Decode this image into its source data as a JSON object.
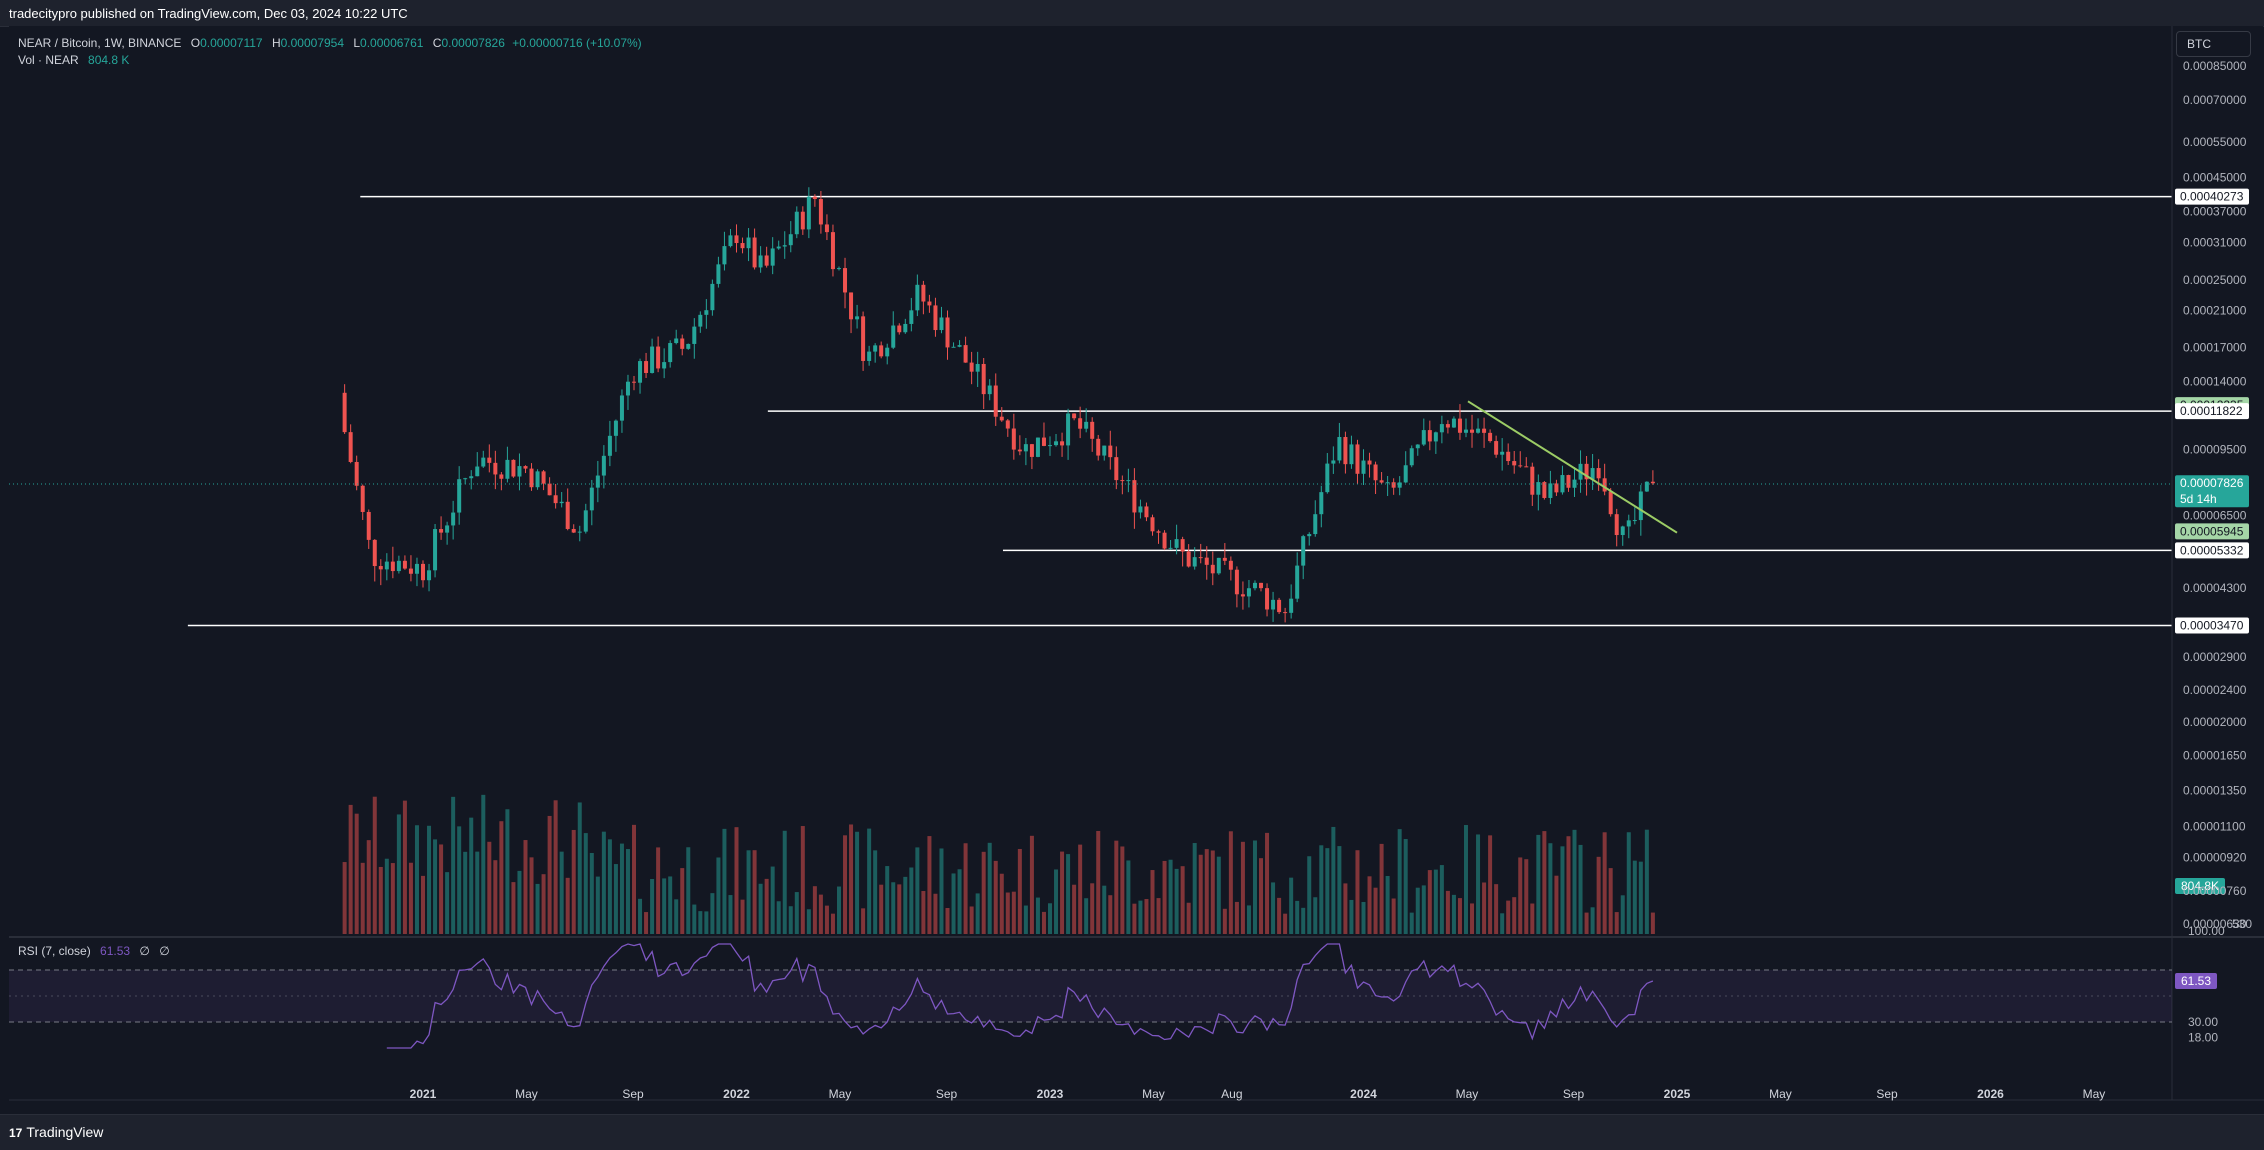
{
  "header": {
    "published": "tradecitypro published on TradingView.com, Dec 03, 2024 10:22 UTC"
  },
  "legend": {
    "symbol": "NEAR / Bitcoin, 1W, BINANCE",
    "o_label": "O",
    "o": "0.00007117",
    "h_label": "H",
    "h": "0.00007954",
    "l_label": "L",
    "l": "0.00006761",
    "c_label": "C",
    "c": "0.00007826",
    "change": "+0.00000716 (+10.07%)",
    "vol_label": "Vol · NEAR",
    "vol_value": "804.8 K"
  },
  "currency_button": "BTC",
  "rsi_legend": {
    "name": "RSI (7, close)",
    "value": "61.53",
    "extra1": "∅",
    "extra2": "∅"
  },
  "footer": {
    "logo": "TradingView",
    "logo_mark": "17"
  },
  "colors": {
    "up": "#26a69a",
    "down": "#ef5350",
    "rsi": "#7e57c2",
    "trendline": "#9ccc65"
  },
  "chart_data": {
    "type": "candlestick",
    "symbol": "NEAR / Bitcoin",
    "interval": "1W",
    "exchange": "BINANCE",
    "y_scale": "log",
    "price_axis_labels": [
      "0.00085000",
      "0.00070000",
      "0.00055000",
      "0.00045000",
      "0.00037000",
      "0.00031000",
      "0.00025000",
      "0.00021000",
      "0.00017000",
      "0.00014000",
      "0.00009500",
      "0.00006500",
      "0.00004300",
      "0.00002900",
      "0.00002400",
      "0.00002000",
      "0.00001650",
      "0.00001350",
      "0.00001100",
      "0.00000920",
      "0.00000760",
      "0.00000630"
    ],
    "price_axis_partial_label": "530",
    "highlighted_labels": [
      {
        "value": "0.00040273",
        "style": "white"
      },
      {
        "value": "0.00012235",
        "style": "green"
      },
      {
        "value": "0.00011822",
        "style": "white"
      },
      {
        "value": "0.00007826",
        "style": "teal",
        "sub": "5d 14h"
      },
      {
        "value": "0.00005945",
        "style": "green"
      },
      {
        "value": "0.00005332",
        "style": "white"
      },
      {
        "value": "0.00003470",
        "style": "white"
      }
    ],
    "x_axis_labels": [
      "2021",
      "May",
      "Sep",
      "2022",
      "May",
      "Sep",
      "2023",
      "May",
      "Aug",
      "2024",
      "May",
      "Sep",
      "2025",
      "May",
      "Sep",
      "2026",
      "May"
    ],
    "horizontal_levels": [
      0.00040273,
      0.00011822,
      5.332e-05,
      3.47e-05
    ],
    "trendline": {
      "from": [
        "2024-05",
        0.000125
      ],
      "to": [
        "2025-01",
        5.9e-05
      ]
    },
    "weekly_close_anchors": [
      {
        "date": "2020-10",
        "close": 0.000105
      },
      {
        "date": "2020-11",
        "close": 5.2e-05
      },
      {
        "date": "2021-01",
        "close": 4.8e-05
      },
      {
        "date": "2021-03",
        "close": 9e-05
      },
      {
        "date": "2021-05",
        "close": 8.5e-05
      },
      {
        "date": "2021-07",
        "close": 6e-05
      },
      {
        "date": "2021-09",
        "close": 0.00015
      },
      {
        "date": "2021-11",
        "close": 0.00017
      },
      {
        "date": "2022-01",
        "close": 0.00033
      },
      {
        "date": "2022-02",
        "close": 0.00026
      },
      {
        "date": "2022-04",
        "close": 0.0004
      },
      {
        "date": "2022-06",
        "close": 0.00016
      },
      {
        "date": "2022-08",
        "close": 0.00023
      },
      {
        "date": "2022-10",
        "close": 0.00015
      },
      {
        "date": "2022-12",
        "close": 9.5e-05
      },
      {
        "date": "2023-02",
        "close": 0.00011
      },
      {
        "date": "2023-04",
        "close": 7.5e-05
      },
      {
        "date": "2023-06",
        "close": 5.2e-05
      },
      {
        "date": "2023-09",
        "close": 4.2e-05
      },
      {
        "date": "2023-10",
        "close": 3.8e-05
      },
      {
        "date": "2023-12",
        "close": 0.0001
      },
      {
        "date": "2024-02",
        "close": 7.2e-05
      },
      {
        "date": "2024-04",
        "close": 0.000115
      },
      {
        "date": "2024-06",
        "close": 9.8e-05
      },
      {
        "date": "2024-08",
        "close": 7.2e-05
      },
      {
        "date": "2024-10",
        "close": 8.8e-05
      },
      {
        "date": "2024-11",
        "close": 5.5e-05
      },
      {
        "date": "2024-12",
        "close": 7.826e-05
      }
    ],
    "volume_last": "804.8K",
    "rsi": {
      "period": 7,
      "current": 61.53,
      "axis_labels": [
        "100.00",
        "30.00",
        "18.00"
      ],
      "bands": [
        70,
        30
      ]
    }
  }
}
